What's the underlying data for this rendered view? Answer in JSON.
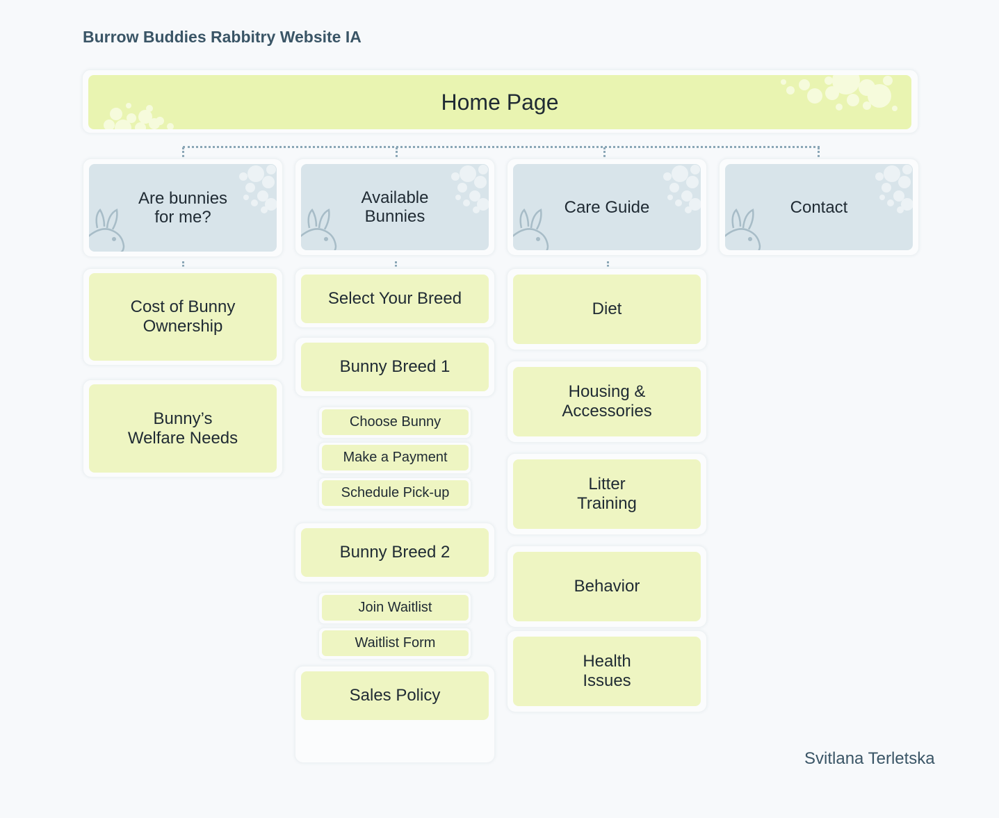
{
  "header": {
    "title": "Burrow Buddies Rabbitry Website IA"
  },
  "home": {
    "label": "Home Page"
  },
  "categories": {
    "are_bunnies": "Are bunnies\nfor me?",
    "available": "Available\nBunnies",
    "care_guide": "Care Guide",
    "contact": "Contact"
  },
  "are_bunnies_children": [
    "Cost of Bunny\nOwnership",
    "Bunny’s\nWelfare Needs"
  ],
  "available_children": {
    "select_breed": "Select Your Breed",
    "breed1": "Bunny Breed 1",
    "breed1_steps": [
      "Choose Bunny",
      "Make a Payment",
      "Schedule Pick-up"
    ],
    "breed2": "Bunny Breed 2",
    "breed2_steps": [
      "Join Waitlist",
      "Waitlist Form"
    ],
    "sales_policy": "Sales Policy"
  },
  "care_children": [
    "Diet",
    "Housing &\nAccessories",
    "Litter\nTraining",
    "Behavior",
    "Health\nIssues"
  ],
  "footer": {
    "author": "Svitlana Terletska"
  },
  "colors": {
    "home": "#e9f4b1",
    "category": "#d8e4ea",
    "node": "#eef5c2",
    "connector": "#8aa6b6",
    "title_text": "#3a5566"
  }
}
